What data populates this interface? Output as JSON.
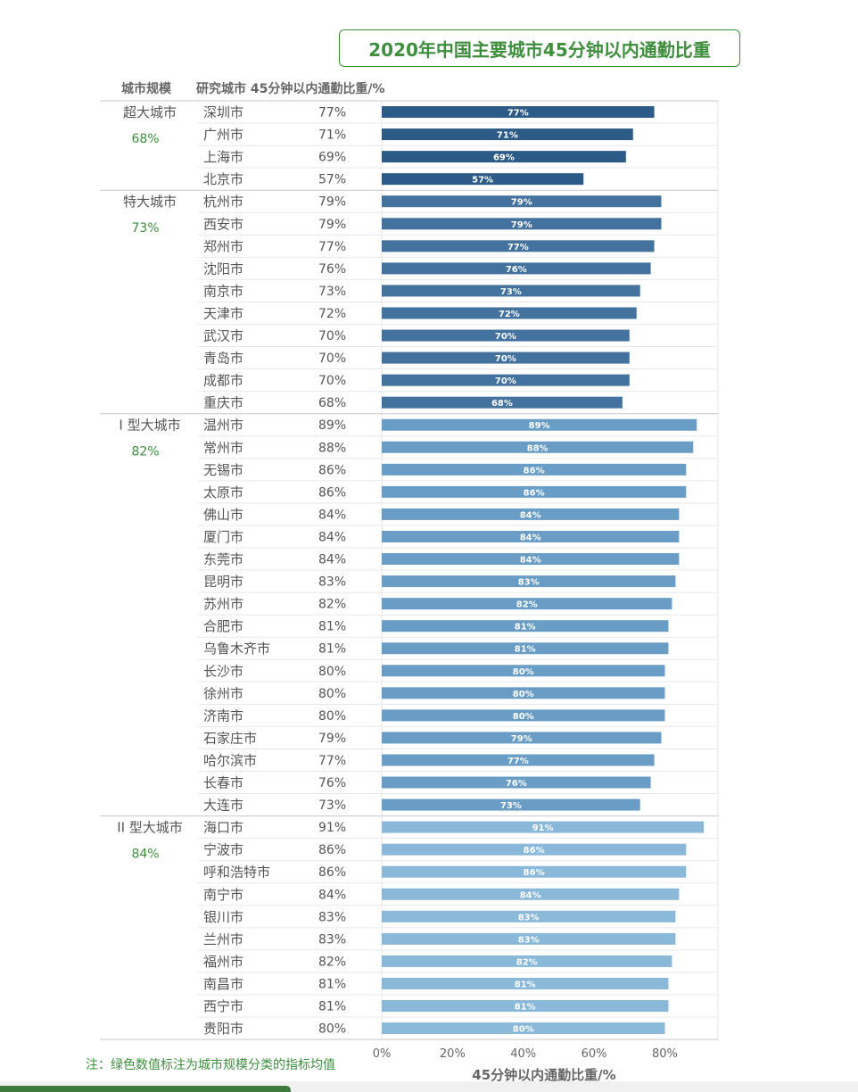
{
  "header": {
    "title": "2020年中国主要城市45分钟以内通勤比重",
    "col_scale": "城市规模",
    "col_city_value": "研究城市 45分钟以内通勤比重/%"
  },
  "footnote": "注：绿色数值标注为城市规模分类的指标均值",
  "colors": {
    "accent_green": "#3e8e3e",
    "super_large": "#2b5b86",
    "mega": "#43729f",
    "type1": "#6a9dc5",
    "type2": "#8ab8d9"
  },
  "chart_data": {
    "type": "bar",
    "orientation": "horizontal",
    "title": "2020年中国主要城市45分钟以内通勤比重",
    "xlabel": "45分钟以内通勤比重/%",
    "xlim": [
      0,
      95
    ],
    "xticks": [
      "0%",
      "20%",
      "40%",
      "60%",
      "80%"
    ],
    "xtick_values": [
      0,
      20,
      40,
      60,
      80
    ],
    "groups": [
      {
        "name": "超大城市",
        "mean": "68%",
        "color": "#2b5b86",
        "cities": [
          "深圳市",
          "广州市",
          "上海市",
          "北京市"
        ],
        "values": [
          77,
          71,
          69,
          57
        ]
      },
      {
        "name": "特大城市",
        "mean": "73%",
        "color": "#43729f",
        "cities": [
          "杭州市",
          "西安市",
          "郑州市",
          "沈阳市",
          "南京市",
          "天津市",
          "武汉市",
          "青岛市",
          "成都市",
          "重庆市"
        ],
        "values": [
          79,
          79,
          77,
          76,
          73,
          72,
          70,
          70,
          70,
          68
        ]
      },
      {
        "name": "I 型大城市",
        "mean": "82%",
        "color": "#6a9dc5",
        "cities": [
          "温州市",
          "常州市",
          "无锡市",
          "太原市",
          "佛山市",
          "厦门市",
          "东莞市",
          "昆明市",
          "苏州市",
          "合肥市",
          "乌鲁木齐市",
          "长沙市",
          "徐州市",
          "济南市",
          "石家庄市",
          "哈尔滨市",
          "长春市",
          "大连市"
        ],
        "values": [
          89,
          88,
          86,
          86,
          84,
          84,
          84,
          83,
          82,
          81,
          81,
          80,
          80,
          80,
          79,
          77,
          76,
          73
        ]
      },
      {
        "name": "II 型大城市",
        "mean": "84%",
        "color": "#8ab8d9",
        "cities": [
          "海口市",
          "宁波市",
          "呼和浩特市",
          "南宁市",
          "银川市",
          "兰州市",
          "福州市",
          "南昌市",
          "西宁市",
          "贵阳市"
        ],
        "values": [
          91,
          86,
          86,
          84,
          83,
          83,
          82,
          81,
          81,
          80
        ]
      }
    ]
  }
}
